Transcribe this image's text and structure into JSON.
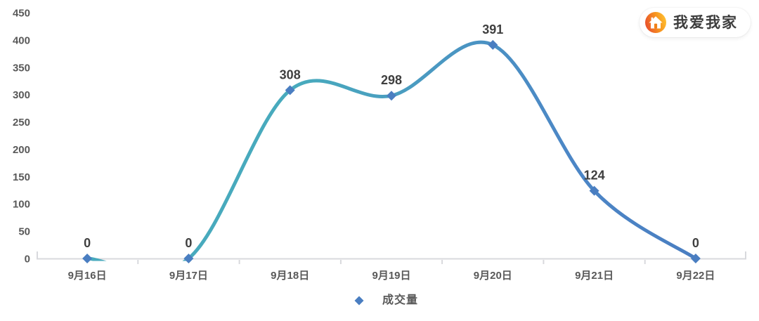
{
  "page": {
    "background": "#ffffff"
  },
  "logo": {
    "text": "我爱我家",
    "icon": "house-icon",
    "icon_gradient": [
      "#E9542D",
      "#F7941E",
      "#FFC433"
    ],
    "door_color": "#F08018",
    "text_color": "#3D3D3D",
    "pill_background": "#ffffff"
  },
  "chart_data": {
    "type": "line",
    "title": "",
    "categories": [
      "9月16日",
      "9月17日",
      "9月18日",
      "9月19日",
      "9月20日",
      "9月21日",
      "9月22日"
    ],
    "series": [
      {
        "name": "成交量",
        "values": [
          0,
          0,
          308,
          298,
          391,
          124,
          0
        ]
      }
    ],
    "data_labels": [
      0,
      0,
      308,
      298,
      391,
      124,
      0
    ],
    "yticks": [
      0,
      50,
      100,
      150,
      200,
      250,
      300,
      350,
      400,
      450
    ],
    "ylim": [
      0,
      450
    ],
    "xlabel": "",
    "ylabel": "",
    "grid": false,
    "smooth": true,
    "show_point_labels": true,
    "legend_position": "bottom",
    "colors": {
      "line_gradient": [
        "#48AABD",
        "#48AABD",
        "#4C86C6",
        "#4A7EC1"
      ],
      "line_gradient_stops": [
        0,
        0.35,
        0.8,
        1
      ],
      "marker": "#4A7EC1",
      "axis": "#D8D9DD",
      "axis_label": "#595959",
      "data_label": "#3F3F3F"
    }
  }
}
